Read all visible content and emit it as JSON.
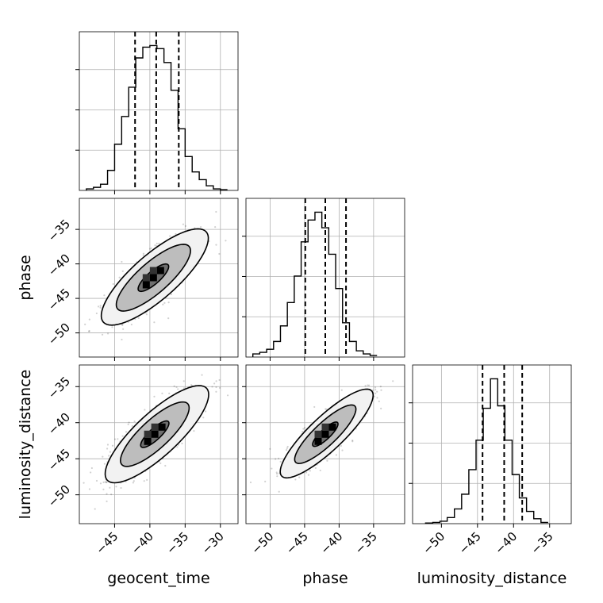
{
  "chart_data": {
    "type": "corner",
    "grid": true,
    "parameters": [
      "geocent_time",
      "phase",
      "luminosity_distance"
    ],
    "labels": {
      "x": [
        "geocent_time",
        "phase",
        "luminosity_distance"
      ],
      "y": [
        "phase",
        "luminosity_distance"
      ]
    },
    "ranges": {
      "geocent_time": [
        -50,
        -27.5
      ],
      "phase": [
        -53.5,
        -30.5
      ],
      "luminosity_distance": [
        -54,
        -32
      ]
    },
    "x_ticks": {
      "geocent_time": [
        -45,
        -40,
        -35,
        -30
      ],
      "phase": [
        -50,
        -45,
        -40,
        -35
      ],
      "luminosity_distance": [
        -50,
        -45,
        -40,
        -35
      ]
    },
    "y_ticks": {
      "phase": [
        -35,
        -40,
        -45,
        -50
      ],
      "luminosity_distance": [
        -35,
        -40,
        -45,
        -50
      ]
    },
    "tick_labels": {
      "geocent_time": [
        "−45",
        "−40",
        "−35",
        "−30"
      ],
      "phase": [
        "−50",
        "−45",
        "−40",
        "−35"
      ],
      "luminosity_distance": [
        "−50",
        "−45",
        "−40",
        "−35"
      ],
      "phase_y": [
        "−35",
        "−40",
        "−45",
        "−50"
      ],
      "luminosity_distance_y": [
        "−35",
        "−40",
        "−45",
        "−50"
      ]
    },
    "histograms": {
      "geocent_time": {
        "bin_start": -49.0,
        "bin_width": 1.0,
        "counts": [
          1,
          2,
          4,
          13,
          30,
          48,
          67,
          86,
          93,
          94,
          92,
          83,
          65,
          40,
          22,
          12,
          7,
          3,
          1,
          0.5
        ],
        "quantiles": [
          -42.1,
          -39.1,
          -35.9
        ]
      },
      "phase": {
        "bin_start": -52.5,
        "bin_width": 1.0,
        "counts": [
          2,
          3,
          5,
          10,
          20,
          35,
          52,
          74,
          88,
          93,
          83,
          66,
          44,
          22,
          10,
          4,
          2,
          1
        ],
        "quantiles": [
          -44.9,
          -42.0,
          -39.0
        ]
      },
      "luminosity_distance": {
        "bin_start": -52.2,
        "bin_width": 1.0,
        "counts": [
          0.5,
          1,
          2,
          5,
          12,
          24,
          44,
          68,
          94,
          118,
          96,
          68,
          40,
          21,
          10,
          4,
          1
        ],
        "quantiles": [
          -44.3,
          -41.3,
          -38.8
        ]
      }
    },
    "pairs": [
      {
        "x": "geocent_time",
        "y": "phase",
        "center": [
          -39.5,
          -42.0
        ],
        "contours": [
          {
            "center": [
              -39.5,
              -42.0
            ],
            "semi_major": 2.8,
            "semi_minor": 0.9,
            "angle_deg": 42
          },
          {
            "center": [
              -39.5,
              -42.0
            ],
            "semi_major": 6.8,
            "semi_minor": 2.2,
            "angle_deg": 42
          },
          {
            "center": [
              -39.3,
              -41.9
            ],
            "semi_major": 9.8,
            "semi_minor": 3.2,
            "angle_deg": 42
          }
        ]
      },
      {
        "x": "geocent_time",
        "y": "luminosity_distance",
        "center": [
          -39.3,
          -41.6
        ],
        "contours": [
          {
            "center": [
              -39.3,
              -41.6
            ],
            "semi_major": 2.6,
            "semi_minor": 0.8,
            "angle_deg": 42
          },
          {
            "center": [
              -39.3,
              -41.6
            ],
            "semi_major": 6.3,
            "semi_minor": 2.0,
            "angle_deg": 42
          },
          {
            "center": [
              -39.0,
              -41.6
            ],
            "semi_major": 9.5,
            "semi_minor": 3.0,
            "angle_deg": 42
          }
        ]
      },
      {
        "x": "phase",
        "y": "luminosity_distance",
        "center": [
          -42.0,
          -41.6
        ],
        "contours": [
          {
            "center": [
              -42.0,
              -41.6
            ],
            "semi_major": 2.4,
            "semi_minor": 0.7,
            "angle_deg": 42
          },
          {
            "center": [
              -42.0,
              -41.6
            ],
            "semi_major": 5.8,
            "semi_minor": 1.6,
            "angle_deg": 42
          },
          {
            "center": [
              -41.8,
              -41.5
            ],
            "semi_major": 8.8,
            "semi_minor": 2.4,
            "angle_deg": 42
          }
        ]
      }
    ]
  }
}
